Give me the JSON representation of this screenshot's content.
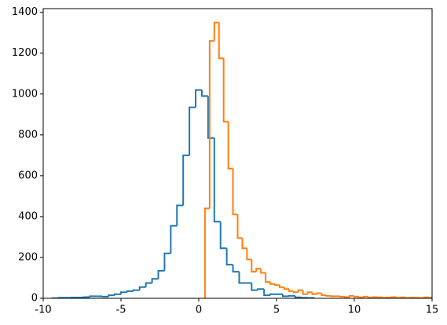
{
  "chart_data": {
    "type": "histogram",
    "xlim": [
      -10,
      15
    ],
    "ylim": [
      0,
      1418
    ],
    "xticks": [
      -10,
      -5,
      0,
      5,
      10,
      15
    ],
    "yticks": [
      0,
      200,
      400,
      600,
      800,
      1000,
      1200,
      1400
    ],
    "series": [
      {
        "color": "#1f77b4",
        "bins": [
          -9.4,
          -9.0,
          -8.6,
          -8.2,
          -7.8,
          -7.4,
          -7.0,
          -6.6,
          -6.2,
          -5.8,
          -5.4,
          -5.0,
          -4.6,
          -4.2,
          -3.8,
          -3.4,
          -3.0,
          -2.6,
          -2.2,
          -1.8,
          -1.4,
          -1.0,
          -0.6,
          -0.2,
          0.2,
          0.6,
          1.0,
          1.4,
          1.8,
          2.2,
          2.6,
          3.0,
          3.4,
          3.8,
          4.2,
          4.6,
          5.0,
          5.4,
          5.8,
          6.2,
          6.6,
          7.0,
          7.4
        ],
        "values": [
          1,
          3,
          3,
          4,
          4,
          6,
          10,
          10,
          8,
          15,
          20,
          30,
          35,
          40,
          55,
          75,
          95,
          135,
          220,
          355,
          455,
          700,
          935,
          1020,
          990,
          785,
          375,
          245,
          165,
          130,
          75,
          75,
          40,
          45,
          15,
          20,
          20,
          10,
          12,
          5,
          3,
          2
        ]
      },
      {
        "color": "#ff7f0e",
        "bins": [
          0.4,
          0.7,
          1.0,
          1.3,
          1.6,
          1.9,
          2.2,
          2.5,
          2.8,
          3.1,
          3.4,
          3.7,
          4.0,
          4.3,
          4.6,
          4.9,
          5.2,
          5.5,
          5.8,
          6.1,
          6.4,
          6.7,
          7.0,
          7.3,
          7.6,
          7.9,
          8.2,
          8.5,
          8.8,
          9.1,
          9.4,
          9.7,
          10.0,
          10.3,
          10.6,
          10.9,
          11.2,
          11.5,
          11.8,
          12.1,
          12.4,
          12.7,
          13.0,
          13.3,
          13.6,
          13.9,
          14.2,
          14.5,
          14.8,
          15.1,
          15.4
        ],
        "values": [
          440,
          1260,
          1350,
          1175,
          865,
          635,
          410,
          295,
          245,
          190,
          130,
          145,
          125,
          80,
          70,
          65,
          55,
          45,
          35,
          30,
          40,
          20,
          30,
          20,
          25,
          15,
          12,
          10,
          10,
          8,
          6,
          12,
          8,
          5,
          8,
          4,
          6,
          5,
          3,
          4,
          6,
          3,
          5,
          2,
          4,
          3,
          2,
          5,
          3,
          2
        ]
      }
    ]
  }
}
